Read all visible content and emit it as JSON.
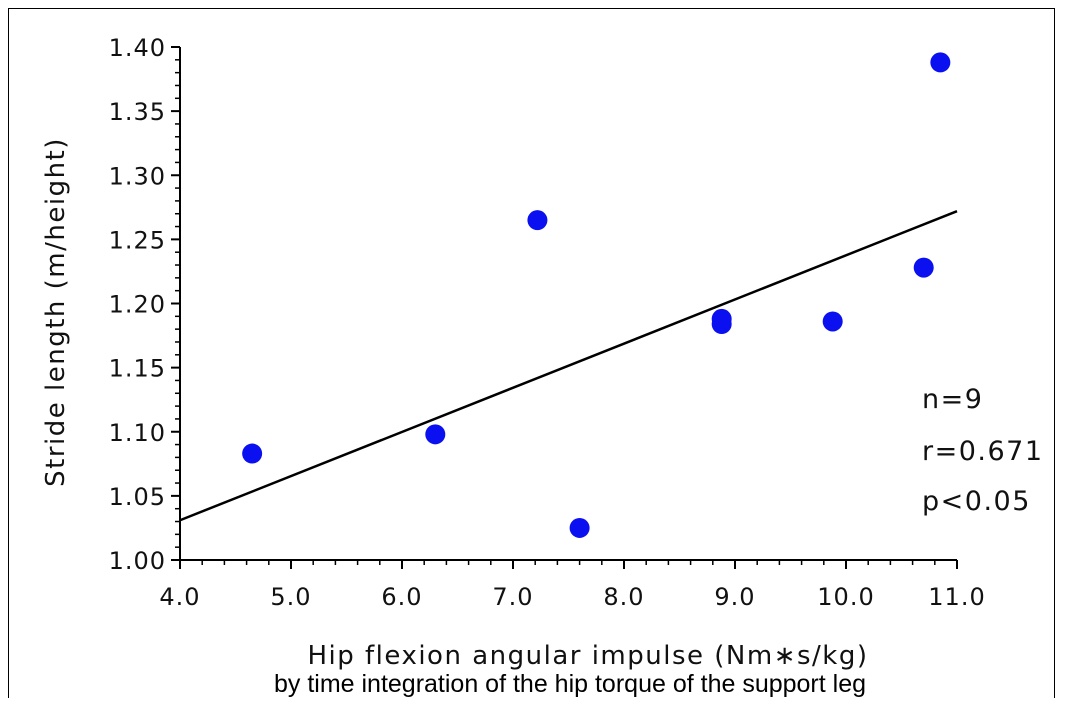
{
  "chart_data": {
    "type": "scatter",
    "xlabel": "Hip flexion angular impulse (Nm∗s/kg)",
    "subtitle": "by time integration of the hip torque of the support leg",
    "ylabel": "Stride length (m/height)",
    "xlim": [
      4.0,
      11.0
    ],
    "ylim": [
      1.0,
      1.4
    ],
    "x_ticks": [
      "4.0",
      "5.0",
      "6.0",
      "7.0",
      "8.0",
      "9.0",
      "10.0",
      "11.0"
    ],
    "y_ticks": [
      "1.00",
      "1.05",
      "1.10",
      "1.15",
      "1.20",
      "1.25",
      "1.30",
      "1.35",
      "1.40"
    ],
    "x_tick_values": [
      4,
      5,
      6,
      7,
      8,
      9,
      10,
      11
    ],
    "y_tick_values": [
      1.0,
      1.05,
      1.1,
      1.15,
      1.2,
      1.25,
      1.3,
      1.35,
      1.4
    ],
    "points": [
      {
        "x": 4.65,
        "y": 1.083
      },
      {
        "x": 6.3,
        "y": 1.098
      },
      {
        "x": 7.22,
        "y": 1.265
      },
      {
        "x": 7.6,
        "y": 1.025
      },
      {
        "x": 8.88,
        "y": 1.188
      },
      {
        "x": 8.88,
        "y": 1.184
      },
      {
        "x": 9.88,
        "y": 1.186
      },
      {
        "x": 10.7,
        "y": 1.228
      },
      {
        "x": 10.85,
        "y": 1.388
      }
    ],
    "regression_line": {
      "x": [
        4.0,
        11.0
      ],
      "y": [
        1.031,
        1.272
      ]
    },
    "marker_color": "#0a10f0",
    "line_color": "#000000",
    "annotations": [
      "n=9",
      "r=0.671",
      "p<0.05"
    ],
    "grid": false,
    "legend": "none"
  }
}
